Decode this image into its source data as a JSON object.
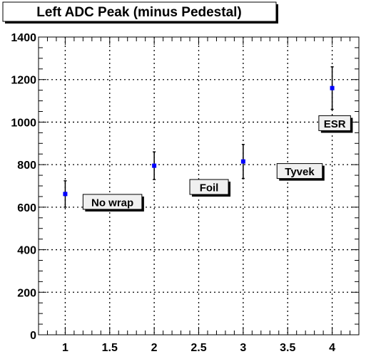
{
  "chart_data": {
    "type": "scatter",
    "title": "Left ADC Peak (minus Pedestal)",
    "xlabel": "",
    "ylabel": "",
    "xlim": [
      0.7,
      4.3
    ],
    "ylim": [
      0,
      1400
    ],
    "x_ticks": [
      1,
      1.5,
      2,
      2.5,
      3,
      3.5,
      4
    ],
    "x_tick_labels": [
      "1",
      "1.5",
      "2",
      "2.5",
      "3",
      "3.5",
      "4"
    ],
    "y_ticks": [
      0,
      200,
      400,
      600,
      800,
      1000,
      1200,
      1400
    ],
    "y_tick_labels": [
      "0",
      "200",
      "400",
      "600",
      "800",
      "1000",
      "1200",
      "1400"
    ],
    "grid": true,
    "marker_color": "#0000ff",
    "series": [
      {
        "x": [
          1,
          2,
          3,
          4
        ],
        "y": [
          662,
          795,
          815,
          1160
        ],
        "y_err": [
          62,
          65,
          80,
          100
        ]
      }
    ],
    "annotations": [
      {
        "text": "No wrap",
        "x": 1.2,
        "y": 625
      },
      {
        "text": "Foil",
        "x": 2.4,
        "y": 695
      },
      {
        "text": "Tyvek",
        "x": 3.38,
        "y": 770
      },
      {
        "text": "ESR",
        "x": 3.85,
        "y": 995
      }
    ]
  }
}
